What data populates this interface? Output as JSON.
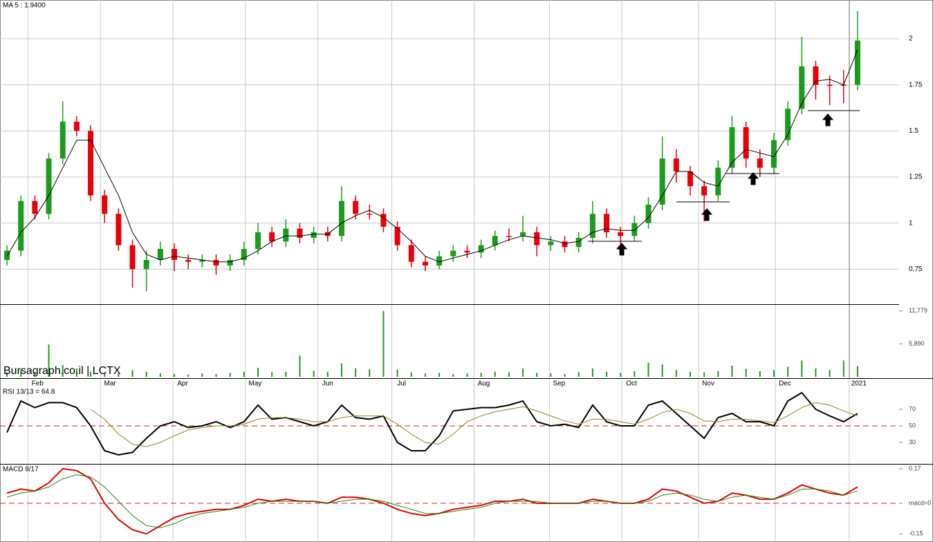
{
  "chart_data": [
    {
      "type": "candlestick",
      "title": "MA 5 : 1.9400",
      "up_color": "#1c9c1c",
      "down_color": "#e8000b",
      "ma_color": "#000000",
      "xlim": [
        -0.5,
        61.5
      ],
      "ylim": [
        0.56,
        2.21
      ],
      "yticks": [
        0.75,
        1,
        1.25,
        1.5,
        1.75,
        2
      ],
      "grid": true,
      "xticks": [
        {
          "value": 1.5,
          "label": "Feb"
        },
        {
          "value": 6.7,
          "label": "Mar"
        },
        {
          "value": 11.9,
          "label": "Apr"
        },
        {
          "value": 17.1,
          "label": "May"
        },
        {
          "value": 22.3,
          "label": "Jun"
        },
        {
          "value": 27.6,
          "label": "Jul"
        },
        {
          "value": 33.5,
          "label": "Aug"
        },
        {
          "value": 38.9,
          "label": "Sep"
        },
        {
          "value": 44.1,
          "label": "Oct"
        },
        {
          "value": 49.6,
          "label": "Nov"
        },
        {
          "value": 55.1,
          "label": "Dec"
        },
        {
          "value": 60.4,
          "label": "2021"
        }
      ],
      "open": [
        0.8,
        0.85,
        1.12,
        1.05,
        1.35,
        1.55,
        1.5,
        1.15,
        1.05,
        0.88,
        0.75,
        0.8,
        0.86,
        0.8,
        0.79,
        0.8,
        0.77,
        0.8,
        0.86,
        0.95,
        0.9,
        0.97,
        0.92,
        0.95,
        0.93,
        1.12,
        1.05,
        1.05,
        0.98,
        0.88,
        0.79,
        0.77,
        0.82,
        0.85,
        0.84,
        0.88,
        0.93,
        0.93,
        0.95,
        0.88,
        0.9,
        0.87,
        0.92,
        1.05,
        0.95,
        0.93,
        1.0,
        1.1,
        1.35,
        1.28,
        1.2,
        1.15,
        1.3,
        1.52,
        1.35,
        1.3,
        1.45,
        1.62,
        1.85,
        1.75,
        1.75,
        1.75
      ],
      "high": [
        0.88,
        1.15,
        1.15,
        1.38,
        1.66,
        1.58,
        1.53,
        1.18,
        1.08,
        0.91,
        0.85,
        0.9,
        0.89,
        0.83,
        0.83,
        0.83,
        0.83,
        0.9,
        1.0,
        0.98,
        1.02,
        1.0,
        0.98,
        0.98,
        1.2,
        1.15,
        1.1,
        1.08,
        1.01,
        0.91,
        0.82,
        0.85,
        0.88,
        0.88,
        0.91,
        0.96,
        0.97,
        1.04,
        0.98,
        0.93,
        0.93,
        0.95,
        1.12,
        1.08,
        0.98,
        1.04,
        1.14,
        1.47,
        1.4,
        1.31,
        1.23,
        1.34,
        1.58,
        1.55,
        1.4,
        1.49,
        1.66,
        2.01,
        1.88,
        1.8,
        1.83,
        2.15
      ],
      "low": [
        0.77,
        0.82,
        1.02,
        1.02,
        1.32,
        1.47,
        1.12,
        1.0,
        0.85,
        0.65,
        0.63,
        0.77,
        0.74,
        0.75,
        0.76,
        0.72,
        0.74,
        0.77,
        0.83,
        0.87,
        0.87,
        0.89,
        0.89,
        0.9,
        0.9,
        1.02,
        1.02,
        0.95,
        0.85,
        0.76,
        0.74,
        0.75,
        0.79,
        0.81,
        0.81,
        0.85,
        0.9,
        0.9,
        0.82,
        0.85,
        0.84,
        0.84,
        0.89,
        0.92,
        0.88,
        0.9,
        0.97,
        1.07,
        1.22,
        1.15,
        1.01,
        1.12,
        1.27,
        1.3,
        1.25,
        1.27,
        1.42,
        1.59,
        1.67,
        1.64,
        1.65,
        1.72
      ],
      "close": [
        0.85,
        1.12,
        1.05,
        1.35,
        1.55,
        1.5,
        1.15,
        1.05,
        0.88,
        0.75,
        0.8,
        0.86,
        0.8,
        0.79,
        0.8,
        0.77,
        0.8,
        0.86,
        0.95,
        0.9,
        0.97,
        0.92,
        0.95,
        0.93,
        1.12,
        1.05,
        1.05,
        0.98,
        0.88,
        0.79,
        0.77,
        0.82,
        0.85,
        0.84,
        0.88,
        0.93,
        0.93,
        0.95,
        0.88,
        0.9,
        0.87,
        0.92,
        1.05,
        0.95,
        0.93,
        1.0,
        1.1,
        1.35,
        1.28,
        1.2,
        1.15,
        1.3,
        1.52,
        1.35,
        1.3,
        1.45,
        1.62,
        1.85,
        1.75,
        1.75,
        1.75,
        1.99
      ],
      "ma_values": [
        0.82,
        0.95,
        1.03,
        1.15,
        1.3,
        1.45,
        1.45,
        1.3,
        1.15,
        0.95,
        0.83,
        0.8,
        0.82,
        0.81,
        0.8,
        0.79,
        0.79,
        0.81,
        0.85,
        0.9,
        0.93,
        0.93,
        0.94,
        0.94,
        1.0,
        1.04,
        1.07,
        1.03,
        0.97,
        0.9,
        0.82,
        0.79,
        0.81,
        0.83,
        0.85,
        0.88,
        0.91,
        0.93,
        0.92,
        0.91,
        0.89,
        0.9,
        0.95,
        0.97,
        0.96,
        0.96,
        1.03,
        1.15,
        1.28,
        1.28,
        1.22,
        1.2,
        1.33,
        1.4,
        1.38,
        1.36,
        1.48,
        1.65,
        1.77,
        1.78,
        1.75,
        1.94
      ]
    },
    {
      "type": "bar",
      "title": "Bursagraph.co.il | LCTX",
      "color": "#1c9c1c",
      "ylim": [
        0,
        13000
      ],
      "yticks": [
        {
          "value": 11779,
          "label": "11,779"
        },
        {
          "value": 5890,
          "label": "5,890"
        }
      ],
      "values": [
        800,
        1200,
        900,
        5800,
        2100,
        1500,
        900,
        700,
        600,
        1200,
        900,
        600,
        500,
        400,
        600,
        500,
        700,
        900,
        1600,
        800,
        900,
        3800,
        1100,
        900,
        2400,
        1500,
        1300,
        11779,
        1300,
        800,
        600,
        700,
        500,
        600,
        700,
        900,
        800,
        1500,
        700,
        600,
        500,
        800,
        1500,
        900,
        700,
        1000,
        2500,
        2200,
        1200,
        900,
        800,
        1000,
        2000,
        1400,
        1000,
        1200,
        1800,
        2900,
        1500,
        1200,
        2900,
        1900
      ]
    },
    {
      "type": "line",
      "title": "RSI 13/13 = 64.8",
      "ylim": [
        5,
        95
      ],
      "yticks": [
        30,
        50,
        70
      ],
      "ref_line": 50,
      "ref_color": "#d02020",
      "series": [
        {
          "color": "#000000",
          "values": [
            42,
            80,
            72,
            78,
            78,
            72,
            50,
            20,
            15,
            18,
            35,
            50,
            55,
            48,
            50,
            55,
            48,
            55,
            75,
            58,
            60,
            55,
            50,
            55,
            75,
            60,
            58,
            62,
            30,
            20,
            20,
            38,
            68,
            70,
            72,
            72,
            75,
            80,
            55,
            50,
            52,
            48,
            75,
            55,
            50,
            50,
            75,
            80,
            65,
            50,
            35,
            60,
            65,
            55,
            55,
            50,
            80,
            90,
            70,
            62,
            55,
            64.8
          ]
        },
        {
          "color": "#8a8a20",
          "values": [
            null,
            null,
            null,
            null,
            null,
            null,
            70,
            58,
            40,
            28,
            25,
            30,
            38,
            45,
            48,
            50,
            50,
            52,
            58,
            60,
            60,
            58,
            55,
            55,
            60,
            62,
            62,
            62,
            52,
            40,
            30,
            28,
            40,
            55,
            62,
            67,
            70,
            73,
            68,
            62,
            56,
            52,
            58,
            58,
            55,
            52,
            58,
            66,
            70,
            65,
            56,
            55,
            58,
            58,
            56,
            54,
            62,
            72,
            78,
            75,
            68,
            62
          ]
        }
      ]
    },
    {
      "type": "line",
      "title": "MACD 8/17",
      "ylim": [
        -0.19,
        0.19
      ],
      "yticks": [
        0.17,
        {
          "value": 0,
          "label": "macd=0"
        },
        -0.15
      ],
      "ref_line": 0,
      "ref_color": "#d02020",
      "series": [
        {
          "color": "#e00000",
          "values": [
            0.05,
            0.07,
            0.06,
            0.1,
            0.17,
            0.16,
            0.12,
            0.0,
            -0.08,
            -0.13,
            -0.15,
            -0.11,
            -0.07,
            -0.05,
            -0.04,
            -0.03,
            -0.03,
            -0.01,
            0.02,
            0.01,
            0.02,
            0.01,
            0.01,
            0.0,
            0.03,
            0.03,
            0.02,
            0.0,
            -0.03,
            -0.05,
            -0.06,
            -0.05,
            -0.03,
            -0.02,
            -0.01,
            0.01,
            0.01,
            0.02,
            0.0,
            0.0,
            0.0,
            0.0,
            0.02,
            0.01,
            0.0,
            0.0,
            0.02,
            0.07,
            0.06,
            0.03,
            0.0,
            0.01,
            0.05,
            0.04,
            0.02,
            0.02,
            0.05,
            0.09,
            0.07,
            0.05,
            0.04,
            0.08
          ]
        },
        {
          "color": "#1a8a1a",
          "values": [
            0.03,
            0.05,
            0.06,
            0.08,
            0.12,
            0.14,
            0.13,
            0.08,
            0.01,
            -0.06,
            -0.11,
            -0.12,
            -0.1,
            -0.07,
            -0.05,
            -0.04,
            -0.03,
            -0.02,
            0.0,
            0.01,
            0.01,
            0.01,
            0.01,
            0.0,
            0.01,
            0.02,
            0.02,
            0.01,
            -0.01,
            -0.03,
            -0.05,
            -0.05,
            -0.04,
            -0.03,
            -0.02,
            0.0,
            0.01,
            0.01,
            0.01,
            0.0,
            0.0,
            0.0,
            0.01,
            0.01,
            0.0,
            0.0,
            0.01,
            0.04,
            0.05,
            0.04,
            0.02,
            0.01,
            0.03,
            0.04,
            0.03,
            0.02,
            0.04,
            0.07,
            0.07,
            0.06,
            0.04,
            0.06
          ]
        }
      ]
    }
  ]
}
